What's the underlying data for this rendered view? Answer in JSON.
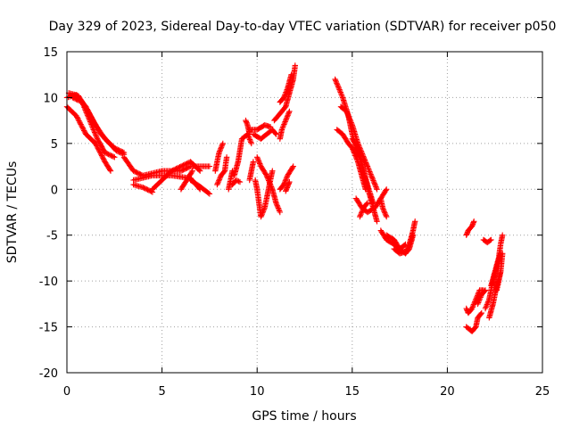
{
  "chart_data": {
    "type": "scatter",
    "title": "Day 329 of 2023, Sidereal Day-to-day VTEC variation (SDTVAR) for receiver p050",
    "xlabel": "GPS time / hours",
    "ylabel": "SDTVAR / TECUs",
    "xlim": [
      0,
      25
    ],
    "ylim": [
      -20,
      15
    ],
    "xticks": [
      "0",
      "5",
      "10",
      "15",
      "20",
      "25"
    ],
    "yticks": [
      "15",
      "10",
      "5",
      "0",
      "-5",
      "-10",
      "-15",
      "-20"
    ],
    "grid": true,
    "marker": "plus",
    "series": [
      {
        "name": "SDTVAR",
        "color": "#ff0000",
        "tracks": [
          [
            [
              0.0,
              10.0
            ],
            [
              0.5,
              10.3
            ],
            [
              1.0,
              9.0
            ],
            [
              1.5,
              7.0
            ],
            [
              2.0,
              5.5
            ],
            [
              2.5,
              4.5
            ],
            [
              3.0,
              4.0
            ]
          ],
          [
            [
              0.0,
              9.0
            ],
            [
              0.5,
              8.0
            ],
            [
              1.0,
              6.0
            ],
            [
              1.5,
              5.0
            ],
            [
              2.0,
              3.0
            ],
            [
              2.3,
              2.0
            ]
          ],
          [
            [
              0.3,
              10.0
            ],
            [
              0.8,
              9.5
            ],
            [
              1.2,
              7.5
            ],
            [
              1.6,
              5.5
            ],
            [
              2.0,
              4.0
            ],
            [
              2.5,
              3.5
            ]
          ],
          [
            [
              0.1,
              10.5
            ],
            [
              0.6,
              10.2
            ],
            [
              1.1,
              8.5
            ],
            [
              1.8,
              6.0
            ],
            [
              2.6,
              4.2
            ],
            [
              3.0,
              3.8
            ]
          ],
          [
            [
              3.0,
              3.5
            ],
            [
              3.5,
              2.0
            ],
            [
              4.0,
              1.5
            ],
            [
              5.0,
              2.0
            ],
            [
              6.0,
              2.0
            ],
            [
              6.5,
              2.5
            ],
            [
              7.5,
              2.5
            ]
          ],
          [
            [
              3.5,
              1.0
            ],
            [
              4.5,
              1.5
            ],
            [
              5.5,
              1.5
            ],
            [
              6.5,
              1.2
            ],
            [
              7.0,
              0.0
            ]
          ],
          [
            [
              3.5,
              0.5
            ],
            [
              4.0,
              0.2
            ],
            [
              4.5,
              -0.3
            ]
          ],
          [
            [
              4.5,
              0.0
            ],
            [
              5.0,
              1.0
            ],
            [
              5.5,
              2.0
            ],
            [
              6.0,
              2.5
            ],
            [
              6.5,
              3.0
            ],
            [
              7.0,
              2.0
            ]
          ],
          [
            [
              6.0,
              0.0
            ],
            [
              6.3,
              1.0
            ],
            [
              6.6,
              2.0
            ]
          ],
          [
            [
              6.5,
              1.0
            ],
            [
              7.0,
              0.3
            ],
            [
              7.5,
              -0.5
            ]
          ],
          [
            [
              7.8,
              2.0
            ],
            [
              7.9,
              3.0
            ],
            [
              8.0,
              4.0
            ],
            [
              8.2,
              5.0
            ]
          ],
          [
            [
              7.9,
              0.5
            ],
            [
              8.1,
              1.5
            ],
            [
              8.3,
              2.0
            ],
            [
              8.4,
              3.5
            ]
          ],
          [
            [
              8.8,
              1.5
            ],
            [
              9.0,
              3.0
            ],
            [
              9.2,
              5.5
            ],
            [
              9.5,
              6.0
            ],
            [
              9.7,
              5.0
            ]
          ],
          [
            [
              8.7,
              0.5
            ],
            [
              8.9,
              1.0
            ],
            [
              9.1,
              0.8
            ]
          ],
          [
            [
              8.5,
              0.0
            ],
            [
              8.6,
              1.0
            ],
            [
              8.7,
              2.0
            ]
          ],
          [
            [
              9.6,
              1.0
            ],
            [
              9.7,
              2.0
            ],
            [
              9.8,
              3.0
            ]
          ],
          [
            [
              9.4,
              7.5
            ],
            [
              9.5,
              7.0
            ],
            [
              9.6,
              6.0
            ]
          ],
          [
            [
              9.8,
              6.0
            ],
            [
              10.2,
              5.5
            ],
            [
              10.5,
              6.0
            ],
            [
              10.8,
              6.5
            ],
            [
              11.0,
              6.0
            ]
          ],
          [
            [
              9.6,
              6.5
            ],
            [
              10.0,
              6.5
            ],
            [
              10.4,
              7.0
            ],
            [
              10.7,
              6.8
            ]
          ],
          [
            [
              10.0,
              3.5
            ],
            [
              10.2,
              2.5
            ],
            [
              10.5,
              1.5
            ],
            [
              10.8,
              0.0
            ],
            [
              11.0,
              -1.5
            ],
            [
              11.2,
              -2.5
            ]
          ],
          [
            [
              9.9,
              1.0
            ],
            [
              10.0,
              0.0
            ],
            [
              10.1,
              -1.5
            ],
            [
              10.2,
              -3.0
            ],
            [
              10.4,
              -2.0
            ],
            [
              10.6,
              0.0
            ],
            [
              10.8,
              2.0
            ]
          ],
          [
            [
              10.9,
              7.5
            ],
            [
              11.1,
              8.0
            ],
            [
              11.3,
              8.5
            ],
            [
              11.5,
              9.0
            ],
            [
              11.7,
              10.5
            ],
            [
              11.9,
              12.0
            ],
            [
              12.0,
              13.5
            ]
          ],
          [
            [
              11.2,
              9.5
            ],
            [
              11.4,
              10.0
            ],
            [
              11.6,
              11.0
            ],
            [
              11.8,
              12.5
            ]
          ],
          [
            [
              11.2,
              5.5
            ],
            [
              11.3,
              6.5
            ],
            [
              11.5,
              7.5
            ],
            [
              11.7,
              8.5
            ]
          ],
          [
            [
              11.2,
              0.0
            ],
            [
              11.4,
              0.5
            ],
            [
              11.6,
              1.5
            ],
            [
              11.9,
              2.5
            ]
          ],
          [
            [
              11.5,
              -0.2
            ],
            [
              11.6,
              0.3
            ],
            [
              11.7,
              0.8
            ]
          ],
          [
            [
              14.1,
              12.0
            ],
            [
              14.3,
              11.0
            ],
            [
              14.5,
              10.0
            ],
            [
              14.8,
              8.0
            ],
            [
              15.0,
              6.0
            ],
            [
              15.3,
              4.0
            ],
            [
              15.6,
              2.0
            ],
            [
              15.8,
              0.5
            ],
            [
              16.1,
              -1.5
            ]
          ],
          [
            [
              14.2,
              6.5
            ],
            [
              14.5,
              6.0
            ],
            [
              14.8,
              5.0
            ],
            [
              15.0,
              4.5
            ],
            [
              15.3,
              3.0
            ],
            [
              15.5,
              1.5
            ],
            [
              15.7,
              0.0
            ]
          ],
          [
            [
              14.4,
              9.0
            ],
            [
              14.7,
              8.5
            ],
            [
              15.0,
              7.0
            ],
            [
              15.3,
              5.0
            ],
            [
              15.5,
              4.0
            ],
            [
              15.8,
              2.5
            ],
            [
              16.0,
              1.5
            ],
            [
              16.3,
              0.0
            ]
          ],
          [
            [
              15.0,
              5.5
            ],
            [
              15.3,
              4.5
            ],
            [
              15.5,
              3.0
            ],
            [
              15.7,
              1.0
            ],
            [
              15.9,
              -0.5
            ],
            [
              16.1,
              -2.0
            ],
            [
              16.3,
              -3.5
            ]
          ],
          [
            [
              15.2,
              -1.0
            ],
            [
              15.5,
              -2.0
            ],
            [
              15.8,
              -2.5
            ],
            [
              16.2,
              -2.0
            ],
            [
              16.5,
              -1.0
            ],
            [
              16.8,
              0.0
            ]
          ],
          [
            [
              15.4,
              -3.0
            ],
            [
              15.6,
              -2.0
            ],
            [
              15.8,
              -1.5
            ]
          ],
          [
            [
              16.5,
              -1.0
            ],
            [
              16.6,
              -2.0
            ],
            [
              16.8,
              -3.0
            ]
          ],
          [
            [
              16.5,
              -4.5
            ],
            [
              16.8,
              -5.5
            ],
            [
              17.2,
              -6.0
            ],
            [
              17.5,
              -6.5
            ],
            [
              17.8,
              -7.0
            ],
            [
              18.0,
              -6.5
            ],
            [
              18.2,
              -5.0
            ]
          ],
          [
            [
              16.8,
              -5.0
            ],
            [
              17.2,
              -5.5
            ],
            [
              17.5,
              -6.5
            ],
            [
              17.8,
              -6.0
            ]
          ],
          [
            [
              17.2,
              -6.5
            ],
            [
              17.5,
              -7.0
            ],
            [
              17.8,
              -6.8
            ],
            [
              18.0,
              -6.0
            ],
            [
              18.2,
              -4.5
            ],
            [
              18.3,
              -3.5
            ]
          ],
          [
            [
              21.0,
              -5.0
            ],
            [
              21.1,
              -4.5
            ],
            [
              21.3,
              -4.0
            ],
            [
              21.4,
              -3.5
            ]
          ],
          [
            [
              21.0,
              -13.0
            ],
            [
              21.1,
              -13.5
            ],
            [
              21.3,
              -13.0
            ],
            [
              21.5,
              -12.0
            ],
            [
              21.7,
              -11.0
            ],
            [
              21.9,
              -11.0
            ]
          ],
          [
            [
              21.0,
              -15.0
            ],
            [
              21.3,
              -15.5
            ],
            [
              21.5,
              -15.0
            ],
            [
              21.6,
              -14.0
            ],
            [
              21.8,
              -13.5
            ]
          ],
          [
            [
              21.6,
              -12.5
            ],
            [
              21.8,
              -11.5
            ],
            [
              22.0,
              -11.0
            ]
          ],
          [
            [
              21.9,
              -5.5
            ],
            [
              22.1,
              -5.8
            ],
            [
              22.3,
              -5.5
            ]
          ],
          [
            [
              22.0,
              -13.0
            ],
            [
              22.2,
              -12.0
            ],
            [
              22.4,
              -10.0
            ],
            [
              22.6,
              -8.5
            ],
            [
              22.8,
              -7.0
            ]
          ],
          [
            [
              22.2,
              -14.0
            ],
            [
              22.4,
              -12.5
            ],
            [
              22.6,
              -10.5
            ],
            [
              22.8,
              -9.0
            ],
            [
              22.9,
              -7.0
            ]
          ],
          [
            [
              22.3,
              -10.5
            ],
            [
              22.5,
              -9.0
            ],
            [
              22.7,
              -7.5
            ],
            [
              22.8,
              -6.0
            ],
            [
              22.9,
              -5.0
            ]
          ],
          [
            [
              22.6,
              -11.0
            ],
            [
              22.7,
              -10.0
            ],
            [
              22.8,
              -9.0
            ]
          ]
        ]
      }
    ]
  }
}
